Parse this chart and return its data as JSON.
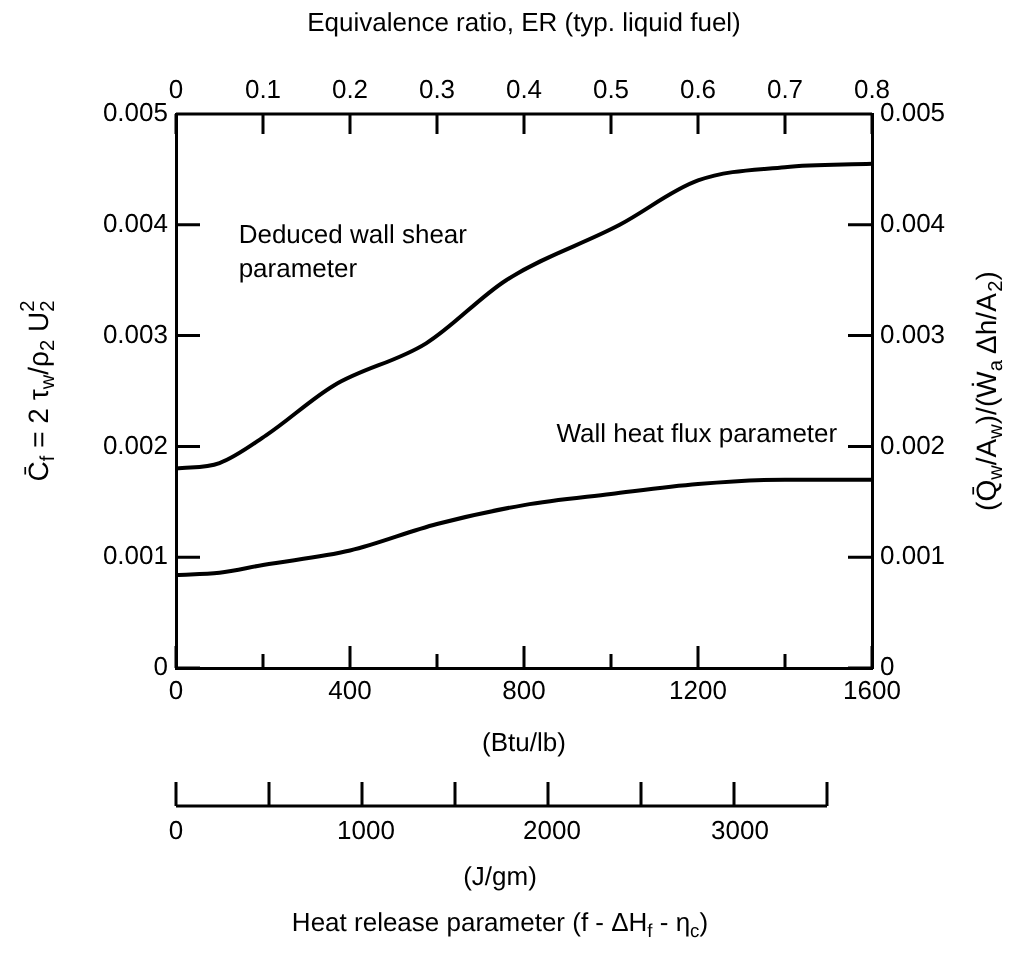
{
  "chart_data": {
    "type": "line",
    "xlabel": "(Btu/lb)",
    "ylabel": "C̄$_{f}$ = 2 τ$_{w}$/ρ$_{2}$ U$_{2}$$^{2}$",
    "y2label": "(Q̄$_{w}$/A$_{w}$)/(Ẇ$_{a}$ Δh/A$_{2}$)",
    "x2label": "Equivalence ratio, ER (typ. liquid fuel)",
    "annotations": [
      "0",
      "1000",
      "2000",
      "3000",
      "(J/gm)",
      "Heat release parameter (f - ΔH$_{f}$ - η$_{c}$)"
    ],
    "x": [
      0,
      100,
      207,
      363,
      575,
      759,
      1020,
      1200,
      1400,
      1600
    ],
    "series": [
      {
        "name": "Deduced wall shear parameter",
        "color": "#000000",
        "values": [
          0.0018,
          0.00185,
          0.0021,
          0.00255,
          0.00293,
          0.0035,
          0.004,
          0.0044,
          0.00452,
          0.00455
        ]
      },
      {
        "name": "Wall heat flux parameter",
        "x": [
          0,
          100,
          200,
          400,
          600,
          800,
          1000,
          1200,
          1400,
          1600
        ],
        "color": "#000000",
        "values": [
          0.00084,
          0.00086,
          0.00093,
          0.00106,
          0.0013,
          0.00147,
          0.00157,
          0.00166,
          0.0017,
          0.0017
        ]
      }
    ],
    "xlim": [
      0,
      1600
    ],
    "xticks": [
      0,
      {
        "value": 200,
        "label": null
      },
      400,
      {
        "value": 600,
        "label": null
      },
      800,
      {
        "value": 1000,
        "label": null
      },
      1200,
      {
        "value": 1400,
        "label": null
      },
      1600
    ],
    "ylim": [
      0,
      0.005
    ],
    "yticks": [
      0,
      0.001,
      0.002,
      0.003,
      0.004,
      0.005
    ],
    "y2lim": [
      0,
      0.005
    ],
    "y2ticks": [
      0,
      0.001,
      0.002,
      0.003,
      0.004,
      0.005
    ],
    "x2lim": [
      0,
      0.8
    ],
    "x2ticks": [
      0,
      0.1,
      0.2,
      0.3,
      0.4,
      0.5,
      0.6,
      0.7,
      0.8
    ],
    "grid": false,
    "legend": false,
    "marker": "none",
    "line_style": "solid"
  }
}
